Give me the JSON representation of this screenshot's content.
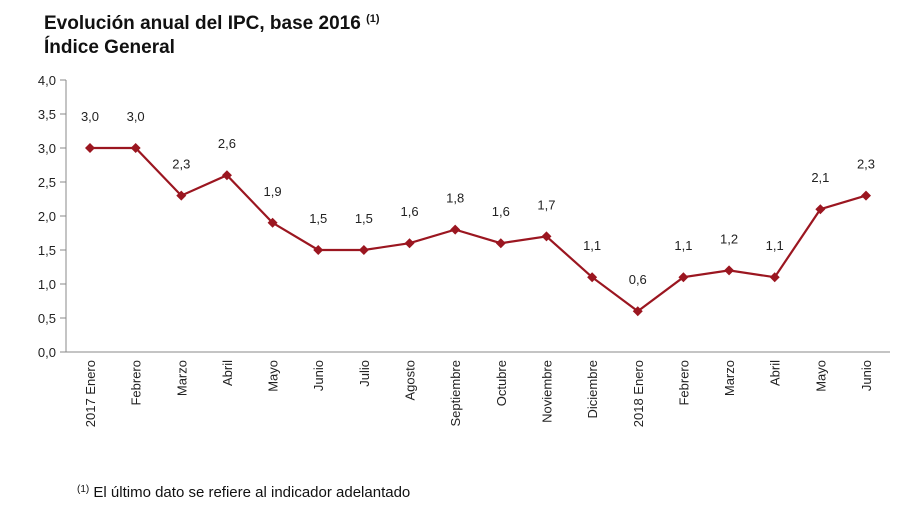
{
  "chart_data": {
    "type": "line",
    "title": "Evolución anual del IPC, base 2016",
    "title_note": "(1)",
    "subtitle": "Índice General",
    "categories": [
      "2017 Enero",
      "Febrero",
      "Marzo",
      "Abril",
      "Mayo",
      "Junio",
      "Julio",
      "Agosto",
      "Septiembre",
      "Octubre",
      "Noviembre",
      "Diciembre",
      "2018 Enero",
      "Febrero",
      "Marzo",
      "Abril",
      "Mayo",
      "Junio"
    ],
    "values": [
      3.0,
      3.0,
      2.3,
      2.6,
      1.9,
      1.5,
      1.5,
      1.6,
      1.8,
      1.6,
      1.7,
      1.1,
      0.6,
      1.1,
      1.2,
      1.1,
      2.1,
      2.3
    ],
    "ylim": [
      0,
      4
    ],
    "yticks": [
      "0,0",
      "0,5",
      "1,0",
      "1,5",
      "2,0",
      "2,5",
      "3,0",
      "3,5",
      "4,0"
    ],
    "grid": false,
    "marker": "diamond",
    "color": "#9b1620",
    "xlabel": "",
    "ylabel": ""
  },
  "footnote": {
    "mark": "(1)",
    "text": "El último dato se refiere al indicador adelantado"
  }
}
